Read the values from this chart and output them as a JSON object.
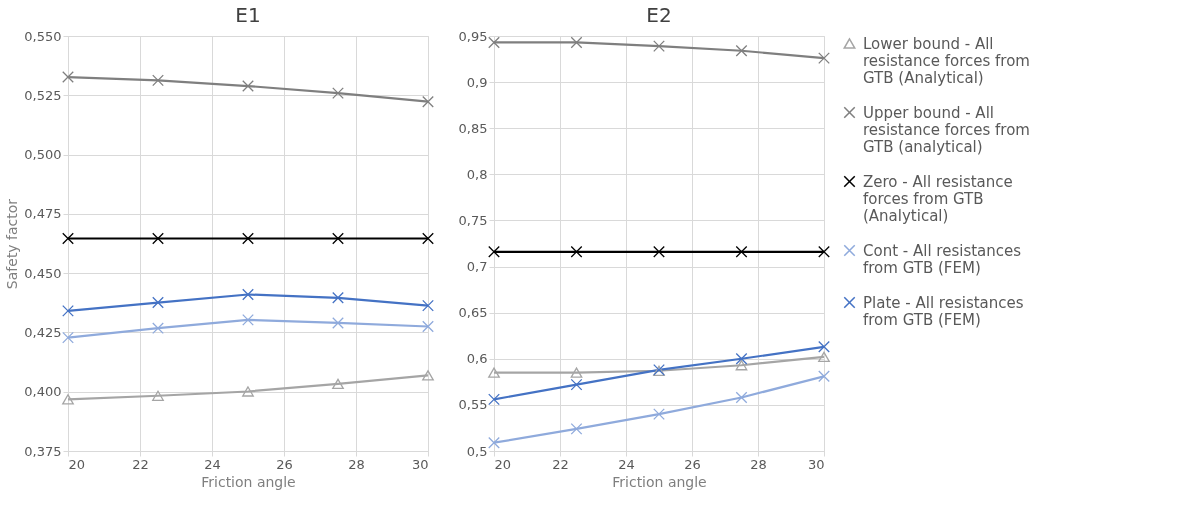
{
  "chart_data": [
    {
      "type": "line",
      "title": "E1",
      "xlabel": "Friction angle",
      "ylabel": "Safety factor",
      "x": [
        20,
        22.5,
        25,
        27.5,
        30
      ],
      "xlim": [
        20,
        30
      ],
      "xticks": [
        20,
        22,
        24,
        26,
        28,
        30
      ],
      "ylim": [
        0.375,
        0.55
      ],
      "yticks": [
        {
          "value": 0.375,
          "label": "0,375"
        },
        {
          "value": 0.4,
          "label": "0,400"
        },
        {
          "value": 0.425,
          "label": "0,425"
        },
        {
          "value": 0.45,
          "label": "0,450"
        },
        {
          "value": 0.475,
          "label": "0,475"
        },
        {
          "value": 0.5,
          "label": "0,500"
        },
        {
          "value": 0.525,
          "label": "0,525"
        },
        {
          "value": 0.55,
          "label": "0,550"
        }
      ],
      "grid": true,
      "series": [
        {
          "color": "#a5a5a5",
          "marker": "triangle",
          "values": [
            0.3968,
            0.3983,
            0.4001,
            0.4033,
            0.4069
          ]
        },
        {
          "color": "#7f7f7f",
          "marker": "cross",
          "values": [
            0.5327,
            0.5313,
            0.5289,
            0.5259,
            0.5223
          ]
        },
        {
          "color": "#000000",
          "marker": "cross",
          "values": [
            0.4646,
            0.4646,
            0.4646,
            0.4646,
            0.4646
          ]
        },
        {
          "color": "#8faadc",
          "marker": "cross",
          "values": [
            0.4228,
            0.4268,
            0.4303,
            0.429,
            0.4275
          ]
        },
        {
          "color": "#4472c4",
          "marker": "cross",
          "values": [
            0.4341,
            0.4376,
            0.441,
            0.4396,
            0.4363
          ]
        }
      ]
    },
    {
      "type": "line",
      "title": "E2",
      "xlabel": "Friction angle",
      "x": [
        20,
        22.5,
        25,
        27.5,
        30
      ],
      "xlim": [
        20,
        30
      ],
      "xticks": [
        20,
        22,
        24,
        26,
        28,
        30
      ],
      "ylim": [
        0.5,
        0.95
      ],
      "yticks": [
        {
          "value": 0.5,
          "label": "0,5"
        },
        {
          "value": 0.55,
          "label": "0,55"
        },
        {
          "value": 0.6,
          "label": "0,6"
        },
        {
          "value": 0.65,
          "label": "0,65"
        },
        {
          "value": 0.7,
          "label": "0,7"
        },
        {
          "value": 0.75,
          "label": "0,75"
        },
        {
          "value": 0.8,
          "label": "0,8"
        },
        {
          "value": 0.85,
          "label": "0,85"
        },
        {
          "value": 0.9,
          "label": "0,9"
        },
        {
          "value": 0.95,
          "label": "0,95"
        }
      ],
      "grid": true,
      "legend": "right",
      "series": [
        {
          "name": "Lower bound - All resistance forces from GTB (Analytical)",
          "color": "#a5a5a5",
          "marker": "triangle",
          "values": [
            0.585,
            0.585,
            0.587,
            0.593,
            0.602
          ]
        },
        {
          "name": "Upper bound - All resistance forces from GTB (analytical)",
          "color": "#7f7f7f",
          "marker": "cross",
          "values": [
            0.943,
            0.943,
            0.939,
            0.934,
            0.926
          ]
        },
        {
          "name": "Zero - All resistance forces from GTB (Analytical)",
          "color": "#000000",
          "marker": "cross",
          "values": [
            0.716,
            0.716,
            0.716,
            0.716,
            0.716
          ]
        },
        {
          "name": "Cont - All resistances from GTB (FEM)",
          "color": "#8faadc",
          "marker": "cross",
          "values": [
            0.509,
            0.524,
            0.54,
            0.558,
            0.581
          ]
        },
        {
          "name": "Plate - All resistances from GTB (FEM)",
          "color": "#4472c4",
          "marker": "cross",
          "values": [
            0.556,
            0.572,
            0.588,
            0.6,
            0.613
          ]
        }
      ]
    }
  ]
}
